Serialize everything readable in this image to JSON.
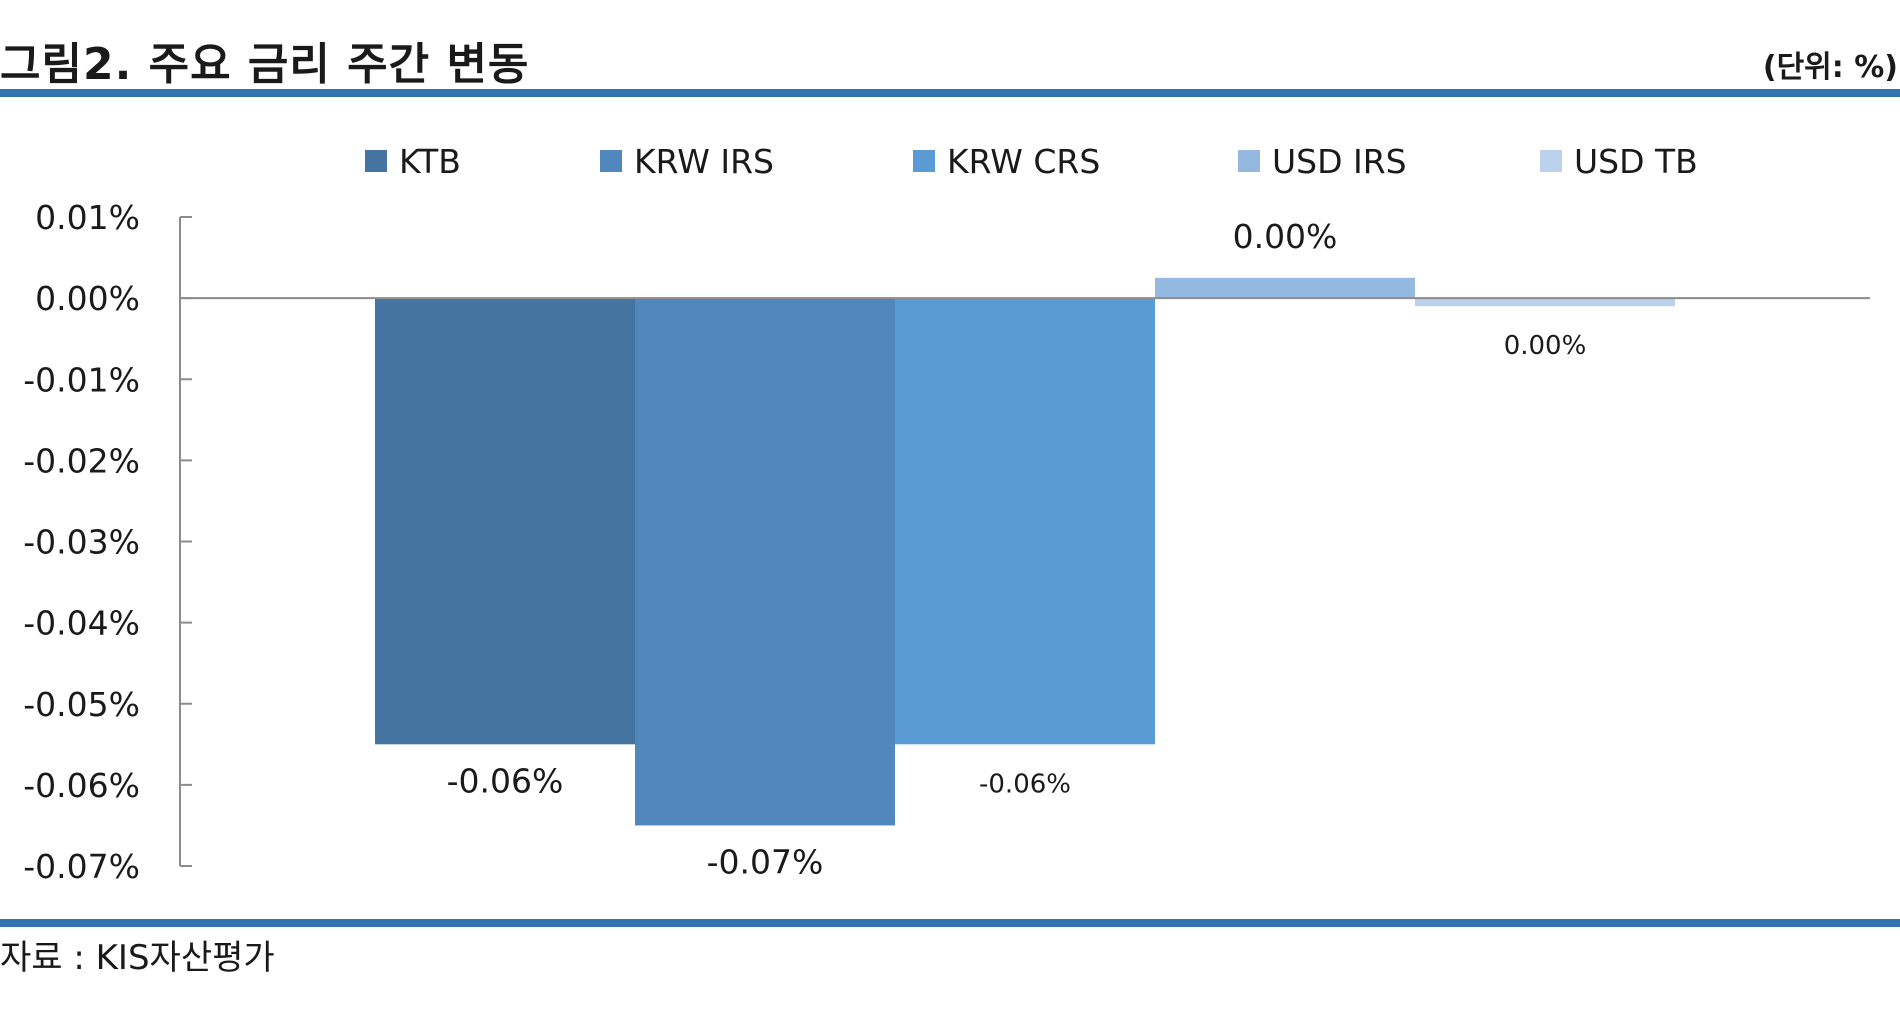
{
  "header": {
    "title": "그림2. 주요 금리 주간 변동",
    "unit": "(단위: %)"
  },
  "footer": {
    "source": "자료 : KIS자산평가"
  },
  "chart_data": {
    "type": "bar",
    "title": "",
    "xlabel": "",
    "ylabel": "",
    "categories": [
      ""
    ],
    "series": [
      {
        "name": "KTB",
        "values": [
          -0.055
        ],
        "label": "-0.06%",
        "color": "#44749f"
      },
      {
        "name": "KRW IRS",
        "values": [
          -0.065
        ],
        "label": "-0.07%",
        "color": "#5088bd"
      },
      {
        "name": "KRW CRS",
        "values": [
          -0.055
        ],
        "label": "-0.06%",
        "color": "#5b9bd4"
      },
      {
        "name": "USD IRS",
        "values": [
          0.0025
        ],
        "label": "0.00%",
        "color": "#95b8e0"
      },
      {
        "name": "USD TB",
        "values": [
          -0.001
        ],
        "label": "0.00%",
        "color": "#bcd1eb"
      }
    ],
    "ylim": [
      -0.07,
      0.01
    ],
    "yticks": [
      0.01,
      0.0,
      -0.01,
      -0.02,
      -0.03,
      -0.04,
      -0.05,
      -0.06,
      -0.07
    ],
    "ytick_labels": [
      "0.01%",
      "0.00%",
      "-0.01%",
      "-0.02%",
      "-0.03%",
      "-0.04%",
      "-0.05%",
      "-0.06%",
      "-0.07%"
    ],
    "grid": false,
    "legend_position": "top"
  }
}
